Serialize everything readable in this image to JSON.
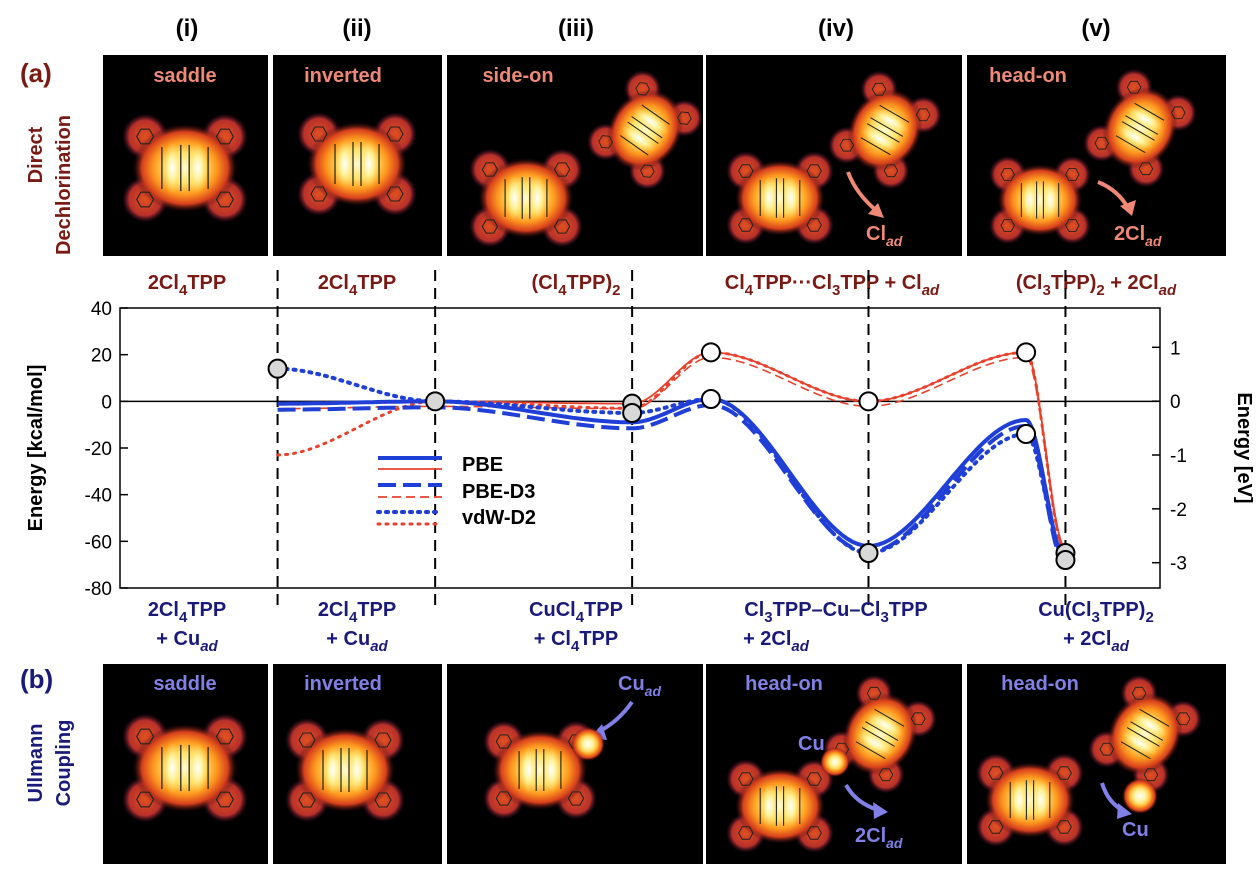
{
  "columns": [
    "(i)",
    "(ii)",
    "(iii)",
    "(iv)",
    "(v)"
  ],
  "panel_a": {
    "label": "(a)",
    "side_label_1": "Direct",
    "side_label_2": "Dechlorination",
    "image_labels": [
      "saddle",
      "inverted",
      "side-on",
      "",
      "head-on"
    ],
    "annotations": [
      "Cl",
      "ad",
      "2Cl",
      "ad"
    ],
    "species": [
      [
        "2Cl",
        "4",
        "TPP"
      ],
      [
        "2Cl",
        "4",
        "TPP"
      ],
      [
        "(Cl",
        "4",
        "TPP)",
        "2"
      ],
      [
        "Cl",
        "4",
        "TPP···Cl",
        "3",
        "TPP + Cl",
        "ad"
      ],
      [
        "(Cl",
        "3",
        "TPP)",
        "2",
        " + 2Cl",
        "ad"
      ]
    ]
  },
  "panel_b": {
    "label": "(b)",
    "side_label_1": "Ullmann",
    "side_label_2": "Coupling",
    "image_labels": [
      "saddle",
      "inverted",
      "",
      "head-on",
      "head-on"
    ],
    "annotations": [
      "Cu",
      "ad",
      "Cu",
      "2Cl",
      "ad",
      "Cu"
    ],
    "species_line1": [
      [
        "2Cl",
        "4",
        "TPP"
      ],
      [
        "2Cl",
        "4",
        "TPP"
      ],
      [
        "CuCl",
        "4",
        "TPP"
      ],
      [
        "Cl",
        "3",
        "TPP–Cu–Cl",
        "3",
        "TPP"
      ],
      [
        "Cu(Cl",
        "3",
        "TPP)",
        "2"
      ]
    ],
    "species_line2": [
      [
        "+ Cu",
        "ad"
      ],
      [
        "+ Cu",
        "ad"
      ],
      [
        "+ Cl",
        "4",
        "TPP"
      ],
      [
        "+ 2Cl",
        "ad"
      ],
      [
        "+ 2Cl",
        "ad"
      ]
    ]
  },
  "chart_data": {
    "type": "line",
    "ylabel": "Energy [kcal/mol]",
    "ylabel_right": "Energy [eV]",
    "ylim": [
      -80,
      40
    ],
    "yticks": [
      40,
      20,
      0,
      -20,
      -40,
      -60,
      -80
    ],
    "ylim_right": [
      -3.47,
      1.73
    ],
    "yticks_right": [
      1,
      0,
      -1,
      -2,
      -3
    ],
    "x_positions": [
      1,
      2,
      3.25,
      4.75,
      6
    ],
    "xlim": [
      0,
      6.6
    ],
    "colors": {
      "blue": "#1f3fd6",
      "red": "#e8412c",
      "dark_red": "#7a1a14",
      "dark_blue": "#1a1a7a",
      "light_blue": "#8080e6",
      "salmon": "#f08878"
    },
    "legend": [
      "PBE",
      "PBE-D3",
      "vdW-D2"
    ],
    "stationary_points": {
      "direct_pbe": [
        [
          1,
          -1
        ],
        [
          2,
          0
        ],
        [
          3.25,
          -1
        ],
        [
          3.75,
          21
        ],
        [
          4.75,
          0
        ],
        [
          5.75,
          21
        ],
        [
          6,
          -63
        ]
      ],
      "ullmann_pbe": [
        [
          1,
          -1
        ],
        [
          2,
          0
        ],
        [
          3.25,
          -9
        ],
        [
          3.75,
          1
        ],
        [
          4.75,
          -62
        ],
        [
          5.75,
          -8
        ],
        [
          6,
          -68
        ]
      ],
      "direct_vdw": [
        [
          1,
          -23
        ],
        [
          2,
          0
        ],
        [
          3.25,
          -3
        ],
        [
          3.75,
          21
        ],
        [
          4.75,
          0
        ],
        [
          5.75,
          21
        ],
        [
          6,
          -65
        ]
      ],
      "ullmann_vdw": [
        [
          1,
          14
        ],
        [
          2,
          0
        ],
        [
          3.25,
          -5
        ],
        [
          3.75,
          1
        ],
        [
          4.75,
          -65
        ],
        [
          5.75,
          -14
        ],
        [
          6,
          -68
        ]
      ]
    },
    "markers_filled": [
      [
        1,
        14
      ],
      [
        2,
        0
      ],
      [
        3.25,
        -1
      ],
      [
        3.25,
        -5
      ],
      [
        4.75,
        -65
      ],
      [
        6,
        -65
      ],
      [
        6,
        -68
      ]
    ],
    "markers_open": [
      [
        3.75,
        21
      ],
      [
        3.75,
        1
      ],
      [
        4.75,
        0
      ],
      [
        5.75,
        21
      ],
      [
        5.75,
        -14
      ]
    ]
  }
}
